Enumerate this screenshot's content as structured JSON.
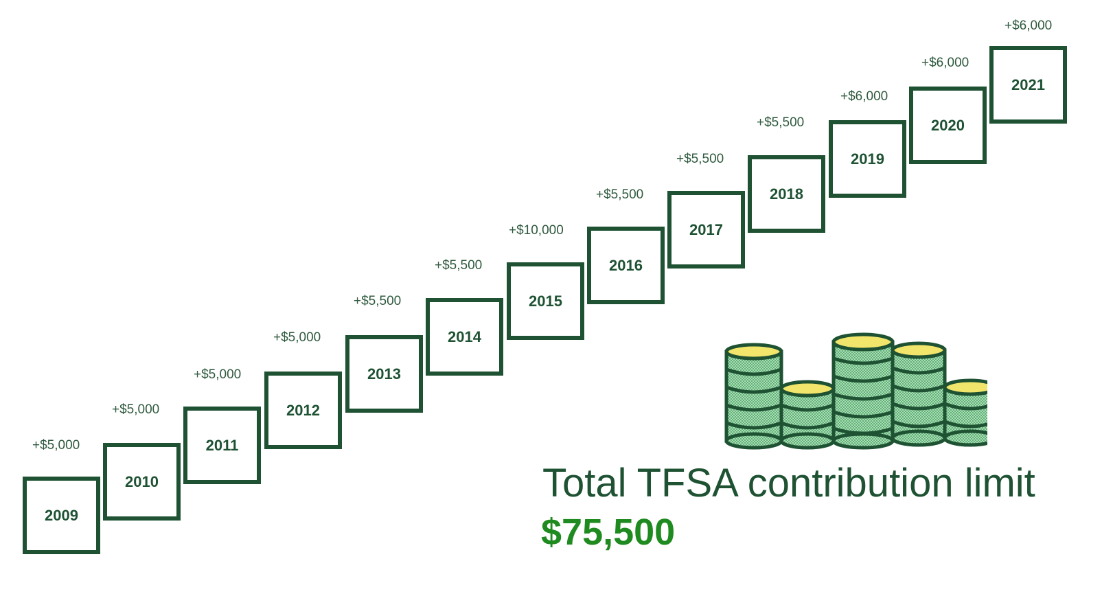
{
  "steps": [
    {
      "year": "2009",
      "amount": "+$5,000"
    },
    {
      "year": "2010",
      "amount": "+$5,000"
    },
    {
      "year": "2011",
      "amount": "+$5,000"
    },
    {
      "year": "2012",
      "amount": "+$5,000"
    },
    {
      "year": "2013",
      "amount": "+$5,500"
    },
    {
      "year": "2014",
      "amount": "+$5,500"
    },
    {
      "year": "2015",
      "amount": "+$10,000"
    },
    {
      "year": "2016",
      "amount": "+$5,500"
    },
    {
      "year": "2017",
      "amount": "+$5,500"
    },
    {
      "year": "2018",
      "amount": "+$5,500"
    },
    {
      "year": "2019",
      "amount": "+$6,000"
    },
    {
      "year": "2020",
      "amount": "+$6,000"
    },
    {
      "year": "2021",
      "amount": "+$6,000"
    }
  ],
  "summary": {
    "label": "Total TFSA contribution limit",
    "value": "$75,500"
  },
  "icons": {
    "coins": "coin-stacks-icon"
  },
  "colors": {
    "box_border": "#1e5233",
    "amount_text": "#2f5a3e",
    "total_value": "#1f8a1f",
    "coin_fill": "#9fdcae",
    "coin_top": "#f2e56b"
  }
}
